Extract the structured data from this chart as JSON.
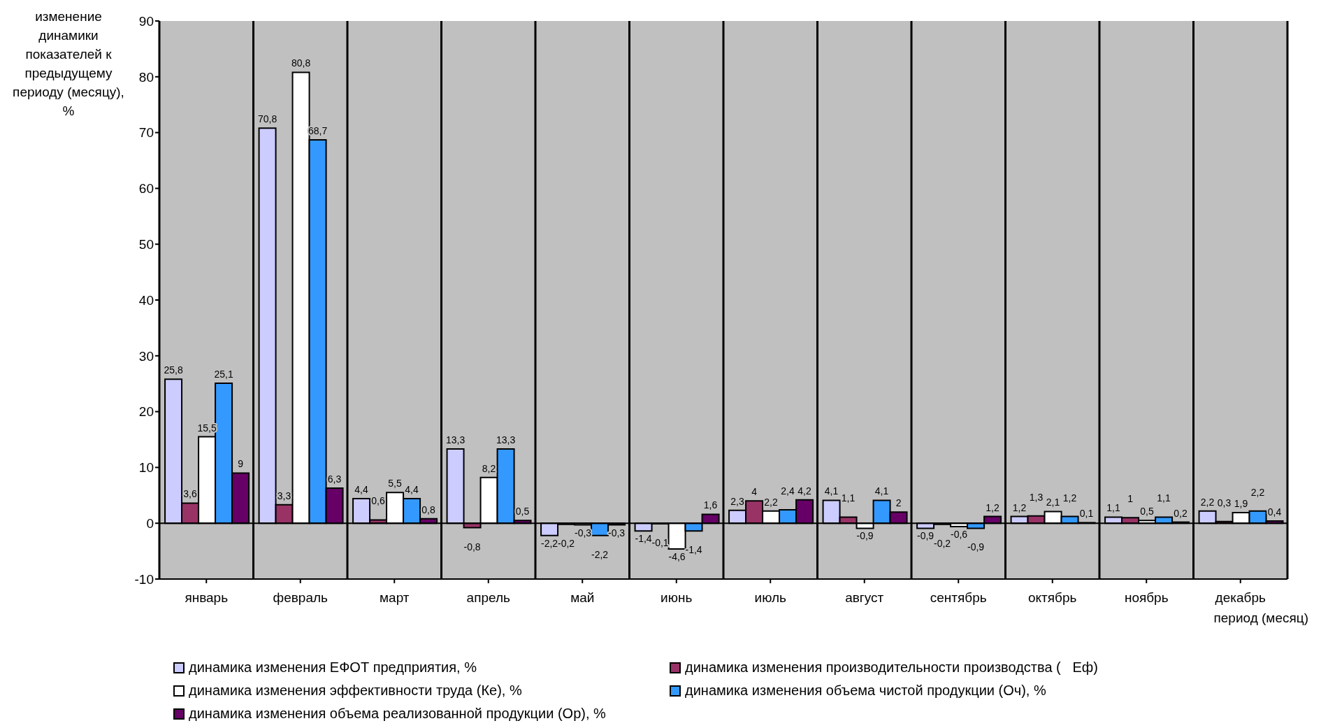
{
  "chart_data": {
    "type": "bar",
    "ylabel": "изменение динамики показателей к предыдущему периоду (месяцу), %",
    "xlabel": "период (месяц)",
    "categories": [
      "январь",
      "февраль",
      "март",
      "апрель",
      "май",
      "июнь",
      "июль",
      "август",
      "сентябрь",
      "октябрь",
      "ноябрь",
      "декабрь"
    ],
    "series": [
      {
        "name": "динамика изменения ЕФОТ предприятия, %",
        "color": "#ccccff",
        "values": [
          25.8,
          70.8,
          4.4,
          13.3,
          -2.2,
          -1.4,
          2.3,
          4.1,
          -0.9,
          1.2,
          1.1,
          2.2
        ],
        "value_labels": [
          "25,8",
          "70,8",
          "4,4",
          "13,3",
          "-2,2",
          "-1,4",
          "2,3",
          "4,1",
          "-0,9",
          "1,2",
          "1,1",
          "2,2"
        ]
      },
      {
        "name": "динамика изменения производительности производства (   Еф)",
        "color": "#993366",
        "values": [
          3.6,
          3.3,
          0.6,
          -0.8,
          -0.2,
          -0.1,
          4,
          1.1,
          -0.2,
          1.3,
          1,
          0.3
        ],
        "value_labels": [
          "3,6",
          "3,3",
          "0,6",
          "-0,8",
          "-0,2",
          "-0,1",
          "4",
          "1,1",
          "-0,2",
          "1,3",
          "1",
          "0,3"
        ]
      },
      {
        "name": "динамика изменения эффективности труда (Ке), %",
        "color": "#ffffff",
        "values": [
          15.5,
          80.8,
          5.5,
          8.2,
          -0.3,
          -4.6,
          2.2,
          -0.9,
          -0.6,
          2.1,
          0.5,
          1.9
        ],
        "value_labels": [
          "15,5",
          "80,8",
          "5,5",
          "8,2",
          "-0,3",
          "-4,6",
          "2,2",
          "-0,9",
          "-0,6",
          "2,1",
          "0,5",
          "1,9"
        ]
      },
      {
        "name": "динамика изменения объема чистой продукции (Оч), %",
        "color": "#3399ff",
        "values": [
          25.1,
          68.7,
          4.4,
          13.3,
          -2.2,
          -1.4,
          2.4,
          4.1,
          -0.9,
          1.2,
          1.1,
          2.2
        ],
        "value_labels": [
          "25,1",
          "68,7",
          "4,4",
          "13,3",
          "-2,2",
          "-1,4",
          "2,4",
          "4,1",
          "-0,9",
          "1,2",
          "1,1",
          "2,2"
        ]
      },
      {
        "name": "динамика изменения объема реализованной продукции (Ор), %",
        "color": "#660066",
        "values": [
          9,
          6.3,
          0.8,
          0.5,
          -0.3,
          1.6,
          4.2,
          2,
          1.2,
          0.1,
          0.2,
          0.4
        ],
        "value_labels": [
          "9",
          "6,3",
          "0,8",
          "0,5",
          "-0,3",
          "1,6",
          "4,2",
          "2",
          "1,2",
          "0,1",
          "0,2",
          "0,4"
        ]
      }
    ],
    "ylim": [
      -10,
      90
    ],
    "yticks": [
      -10,
      0,
      10,
      20,
      30,
      40,
      50,
      60,
      70,
      80,
      90
    ],
    "grid": "x",
    "legend": "bottom"
  }
}
